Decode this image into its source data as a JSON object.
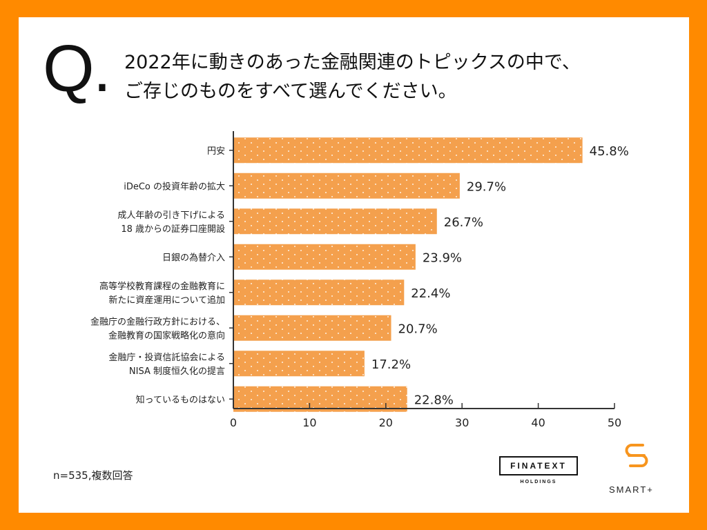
{
  "question": {
    "mark": "Q.",
    "line1": "2022年に動きのあった金融関連のトピックスの中で、",
    "line2": "ご存じのものをすべて選んでください。"
  },
  "chart_data": {
    "type": "bar",
    "orientation": "horizontal",
    "categories": [
      [
        "円安"
      ],
      [
        "iDeCo の投資年齢の拡大"
      ],
      [
        "成人年齢の引き下げによる",
        "18 歳からの証券口座開設"
      ],
      [
        "日銀の為替介入"
      ],
      [
        "高等学校教育課程の金融教育に",
        "新たに資産運用について追加"
      ],
      [
        "金融庁の金融行政方針における、",
        "金融教育の国家戦略化の意向"
      ],
      [
        "金融庁・投資信託協会による",
        "NISA 制度恒久化の提言"
      ],
      [
        "知っているものはない"
      ]
    ],
    "values": [
      45.8,
      29.7,
      26.7,
      23.9,
      22.4,
      20.7,
      17.2,
      22.8
    ],
    "value_labels": [
      "45.8%",
      "29.7%",
      "26.7%",
      "23.9%",
      "22.4%",
      "20.7%",
      "17.2%",
      "22.8%"
    ],
    "xlim": [
      0,
      50
    ],
    "xticks": [
      0,
      10,
      20,
      30,
      40,
      50
    ],
    "xtick_labels": [
      "0",
      "10",
      "20",
      "30",
      "40",
      "50"
    ],
    "bar_color": "#f4a04d",
    "grid": false
  },
  "footnote": "n=535,複数回答",
  "logos": {
    "finatext": "FINATEXT",
    "finatext_sub": "HOLDINGS",
    "smart": "SMART+"
  },
  "colors": {
    "frame": "#ff8a00",
    "bar": "#f4a04d",
    "logo_accent": "#f7951e"
  }
}
